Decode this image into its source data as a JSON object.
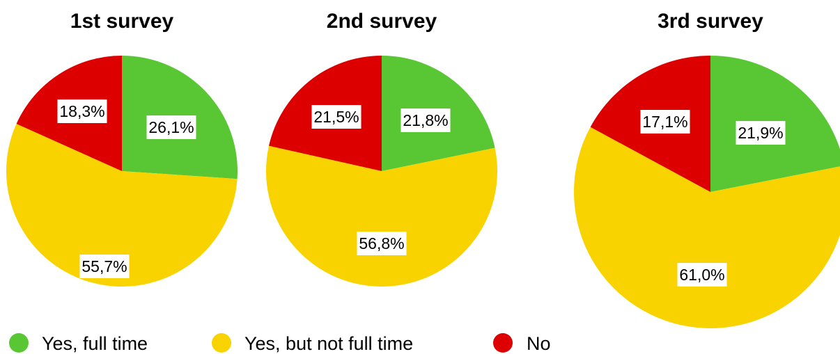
{
  "chart_data": {
    "type": "pie",
    "legend_position": "bottom-left",
    "colors": {
      "Yes, full time": "#58c733",
      "Yes, but not full time": "#f8d300",
      "No": "#dd0000"
    },
    "legend": [
      "Yes, full time",
      "Yes, but not full time",
      "No"
    ],
    "charts": [
      {
        "title": "1st survey",
        "slices": [
          {
            "category": "Yes, full time",
            "value": 26.1,
            "label": "26,1%"
          },
          {
            "category": "Yes, but not full time",
            "value": 55.7,
            "label": "55,7%"
          },
          {
            "category": "No",
            "value": 18.3,
            "label": "18,3%"
          }
        ]
      },
      {
        "title": "2nd survey",
        "slices": [
          {
            "category": "Yes, full time",
            "value": 21.8,
            "label": "21,8%"
          },
          {
            "category": "Yes, but not full time",
            "value": 56.8,
            "label": "56,8%"
          },
          {
            "category": "No",
            "value": 21.5,
            "label": "21,5%"
          }
        ]
      },
      {
        "title": "3rd survey",
        "slices": [
          {
            "category": "Yes, full time",
            "value": 21.9,
            "label": "21,9%"
          },
          {
            "category": "Yes, but not full time",
            "value": 61.0,
            "label": "61,0%"
          },
          {
            "category": "No",
            "value": 17.1,
            "label": "17,1%"
          }
        ]
      }
    ]
  }
}
